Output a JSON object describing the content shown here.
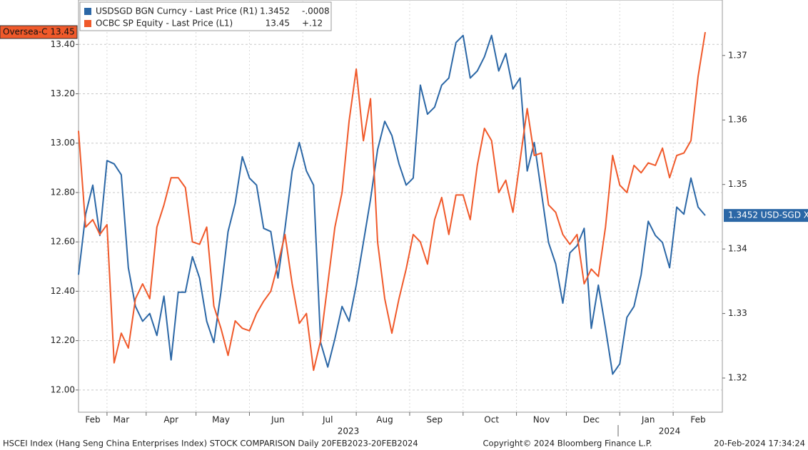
{
  "chart_data": {
    "type": "line",
    "categories": [
      null,
      null,
      "Feb",
      null,
      null,
      null,
      "Mar",
      null,
      null,
      null,
      null,
      null,
      null,
      "Apr",
      null,
      null,
      null,
      null,
      null,
      null,
      "May",
      null,
      null,
      null,
      null,
      null,
      null,
      null,
      "Jun",
      null,
      null,
      null,
      null,
      null,
      null,
      "Jul",
      null,
      null,
      null,
      null,
      null,
      null,
      null,
      "Aug",
      null,
      null,
      null,
      null,
      null,
      null,
      "Sep",
      null,
      null,
      null,
      null,
      null,
      null,
      null,
      "Oct",
      null,
      null,
      null,
      null,
      null,
      null,
      "Nov",
      null,
      null,
      null,
      null,
      null,
      null,
      "Dec",
      null,
      null,
      null,
      null,
      null,
      null,
      null,
      "Jan",
      null,
      null,
      null,
      null,
      null,
      null,
      "Feb",
      null
    ],
    "year_labels": [
      "2023",
      "2024"
    ],
    "series": [
      {
        "name": "USDSGD BGN Curncy - Last Price (R1)",
        "legend_last": "1.3452",
        "legend_change": "-.0008",
        "color": "#2b67a6",
        "axis": "y2",
        "values": [
          1.336,
          1.3454,
          1.3499,
          1.3421,
          1.3537,
          1.3532,
          1.3515,
          1.3371,
          1.3311,
          1.3288,
          1.33,
          1.3266,
          1.3327,
          1.3228,
          1.3333,
          1.3333,
          1.3388,
          1.3355,
          1.3288,
          1.3255,
          1.3333,
          1.3427,
          1.3471,
          1.3543,
          1.351,
          1.3499,
          1.3432,
          1.3427,
          1.3355,
          1.3432,
          1.3521,
          1.3565,
          1.3521,
          1.3499,
          1.3255,
          1.3217,
          1.3261,
          1.3311,
          1.3288,
          1.3344,
          1.341,
          1.3477,
          1.3554,
          1.3598,
          1.3576,
          1.3532,
          1.3499,
          1.351,
          1.3654,
          1.3609,
          1.362,
          1.3654,
          1.3665,
          1.372,
          1.3731,
          1.3665,
          1.3676,
          1.3698,
          1.3731,
          1.3676,
          1.3703,
          1.3648,
          1.3665,
          1.3521,
          1.3565,
          1.3488,
          1.341,
          1.3377,
          1.3316,
          1.3394,
          1.3405,
          1.3432,
          1.3277,
          1.3344,
          1.3277,
          1.3206,
          1.3222,
          1.3294,
          1.3311,
          1.336,
          1.3443,
          1.3421,
          1.341,
          1.3371,
          1.3465,
          1.3454,
          1.351,
          1.3465,
          1.3452
        ]
      },
      {
        "name": "OCBC SP Equity - Last Price (L1)",
        "legend_last": "13.45",
        "legend_change": "+.12",
        "color": "#f0592a",
        "axis": "y",
        "values": [
          13.05,
          12.66,
          12.69,
          12.63,
          12.67,
          12.11,
          12.23,
          12.17,
          12.37,
          12.43,
          12.37,
          12.66,
          12.75,
          12.86,
          12.86,
          12.82,
          12.6,
          12.59,
          12.66,
          12.34,
          12.25,
          12.14,
          12.28,
          12.25,
          12.24,
          12.31,
          12.36,
          12.4,
          12.51,
          12.63,
          12.43,
          12.27,
          12.31,
          12.08,
          12.2,
          12.43,
          12.66,
          12.8,
          13.09,
          13.3,
          13.01,
          13.18,
          12.6,
          12.37,
          12.23,
          12.37,
          12.49,
          12.63,
          12.6,
          12.51,
          12.69,
          12.78,
          12.63,
          12.79,
          12.79,
          12.69,
          12.91,
          13.06,
          13.01,
          12.8,
          12.85,
          12.72,
          12.93,
          13.14,
          12.95,
          12.96,
          12.75,
          12.72,
          12.63,
          12.59,
          12.63,
          12.43,
          12.49,
          12.46,
          12.66,
          12.95,
          12.83,
          12.8,
          12.91,
          12.88,
          12.92,
          12.91,
          12.98,
          12.86,
          12.95,
          12.96,
          13.01,
          13.27,
          13.45
        ]
      }
    ],
    "ylim": [
      11.91,
      13.58
    ],
    "yticks": [
      {
        "value": 12.0,
        "label": "12.00"
      },
      {
        "value": 12.2,
        "label": "12.20"
      },
      {
        "value": 12.4,
        "label": "12.40"
      },
      {
        "value": 12.6,
        "label": "12.60"
      },
      {
        "value": 12.8,
        "label": "12.80"
      },
      {
        "value": 13.0,
        "label": "13.00"
      },
      {
        "value": 13.2,
        "label": "13.20"
      },
      {
        "value": 13.4,
        "label": "13.40"
      }
    ],
    "y2lim": [
      1.3147,
      1.3786
    ],
    "y2ticks": [
      1.32,
      1.33,
      1.34,
      1.35,
      1.36,
      1.37
    ],
    "grid": true,
    "annotations": {
      "left_tag": {
        "text": "Oversea-C 13.45",
        "value": 13.45
      },
      "right_tag": {
        "text": "1.3452 USD-SGD X",
        "value": 1.3452
      }
    },
    "footer": {
      "left": "HSCEI Index (Hang Seng China Enterprises Index) STOCK COMPARISON  Daily 20FEB2023-20FEB2024",
      "center": "Copyright© 2024 Bloomberg Finance L.P.",
      "right": "20-Feb-2024 17:34:24"
    }
  }
}
